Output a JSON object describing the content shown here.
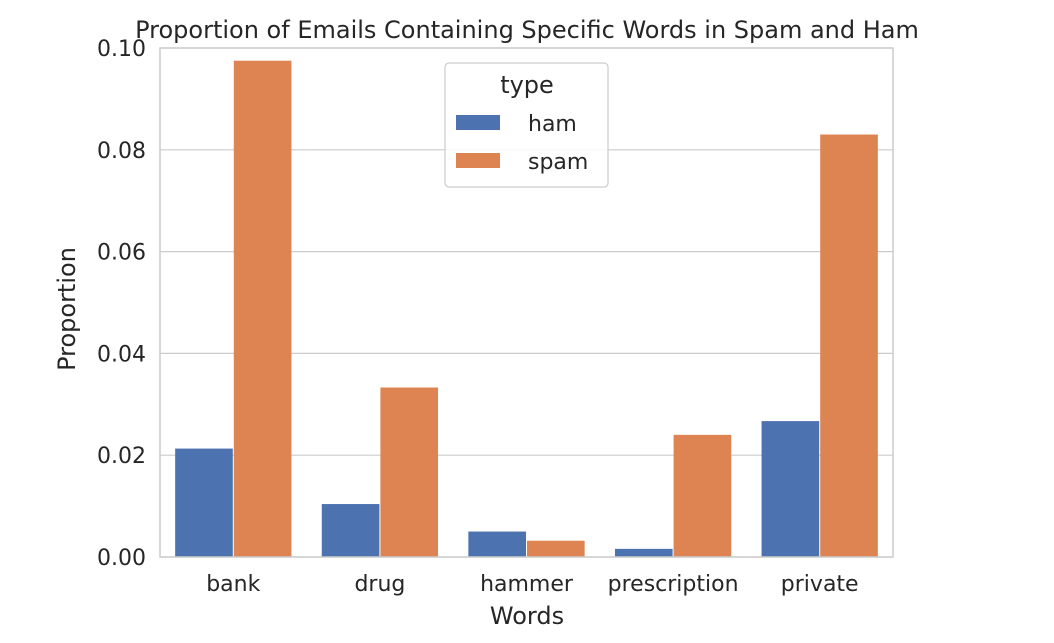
{
  "chart_data": {
    "type": "bar",
    "title": "Proportion of Emails Containing Specific Words in Spam and Ham",
    "xlabel": "Words",
    "ylabel": "Proportion",
    "categories": [
      "bank",
      "drug",
      "hammer",
      "prescription",
      "private"
    ],
    "series": [
      {
        "name": "ham",
        "values": [
          0.0213,
          0.0104,
          0.005,
          0.0016,
          0.0267
        ],
        "color": "#4c72b0"
      },
      {
        "name": "spam",
        "values": [
          0.0975,
          0.0333,
          0.0032,
          0.024,
          0.083
        ],
        "color": "#dd8452"
      }
    ],
    "ylim": [
      0,
      0.1
    ],
    "yticks": [
      "0.00",
      "0.02",
      "0.04",
      "0.06",
      "0.08",
      "0.10"
    ],
    "grid": "horizontal",
    "legend": {
      "title": "type",
      "placement": "upper-center"
    }
  }
}
